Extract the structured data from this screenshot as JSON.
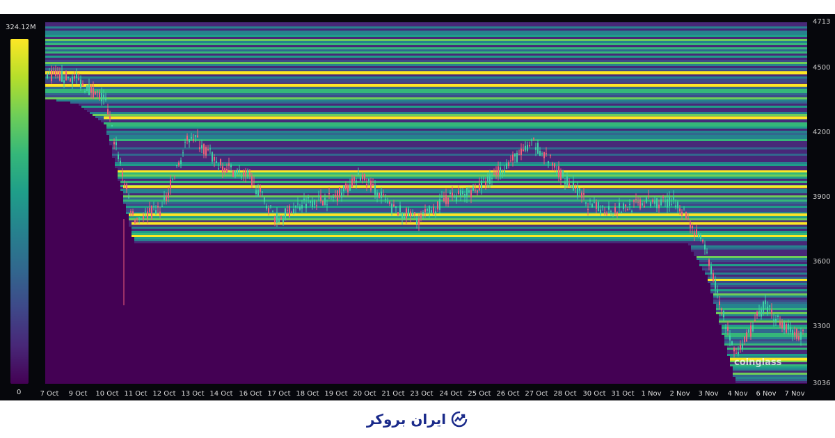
{
  "chart_data": {
    "type": "heatmap",
    "title": "",
    "colorbar": {
      "max_label": "324.12M",
      "min_label": "0",
      "colors": [
        "#440154",
        "#3e4989",
        "#26828e",
        "#35b779",
        "#b5de2b",
        "#fde725"
      ]
    },
    "ylim": [
      3036,
      4713
    ],
    "y_ticks": [
      "4713",
      "4500",
      "4200",
      "3900",
      "3600",
      "3300",
      "3036"
    ],
    "x_ticks": [
      "7 Oct",
      "9 Oct",
      "10 Oct",
      "11 Oct",
      "12 Oct",
      "13 Oct",
      "14 Oct",
      "16 Oct",
      "17 Oct",
      "18 Oct",
      "19 Oct",
      "20 Oct",
      "21 Oct",
      "23 Oct",
      "24 Oct",
      "25 Oct",
      "26 Oct",
      "27 Oct",
      "28 Oct",
      "30 Oct",
      "31 Oct",
      "1 Nov",
      "2 Nov",
      "3 Nov",
      "4 Nov",
      "6 Nov",
      "7 Nov"
    ],
    "price_series": {
      "dates": [
        "7 Oct",
        "9 Oct",
        "10 Oct",
        "11 Oct",
        "12 Oct",
        "13 Oct",
        "14 Oct",
        "16 Oct",
        "17 Oct",
        "18 Oct",
        "19 Oct",
        "20 Oct",
        "21 Oct",
        "23 Oct",
        "24 Oct",
        "25 Oct",
        "26 Oct",
        "27 Oct",
        "28 Oct",
        "30 Oct",
        "31 Oct",
        "1 Nov",
        "2 Nov",
        "3 Nov",
        "4 Nov",
        "6 Nov",
        "7 Nov"
      ],
      "close": [
        4470,
        4450,
        4350,
        3800,
        3850,
        4200,
        4050,
        4000,
        3800,
        3880,
        3900,
        4000,
        3850,
        3800,
        3900,
        3940,
        4050,
        4150,
        4000,
        3850,
        3850,
        3880,
        3880,
        3650,
        3150,
        3400,
        3270
      ]
    },
    "key_liquidity_levels": [
      4480,
      4420,
      4270,
      3950,
      3820,
      3780,
      3150
    ]
  },
  "watermark": "coinglass",
  "footer": {
    "brand": "ایران بروکر"
  }
}
